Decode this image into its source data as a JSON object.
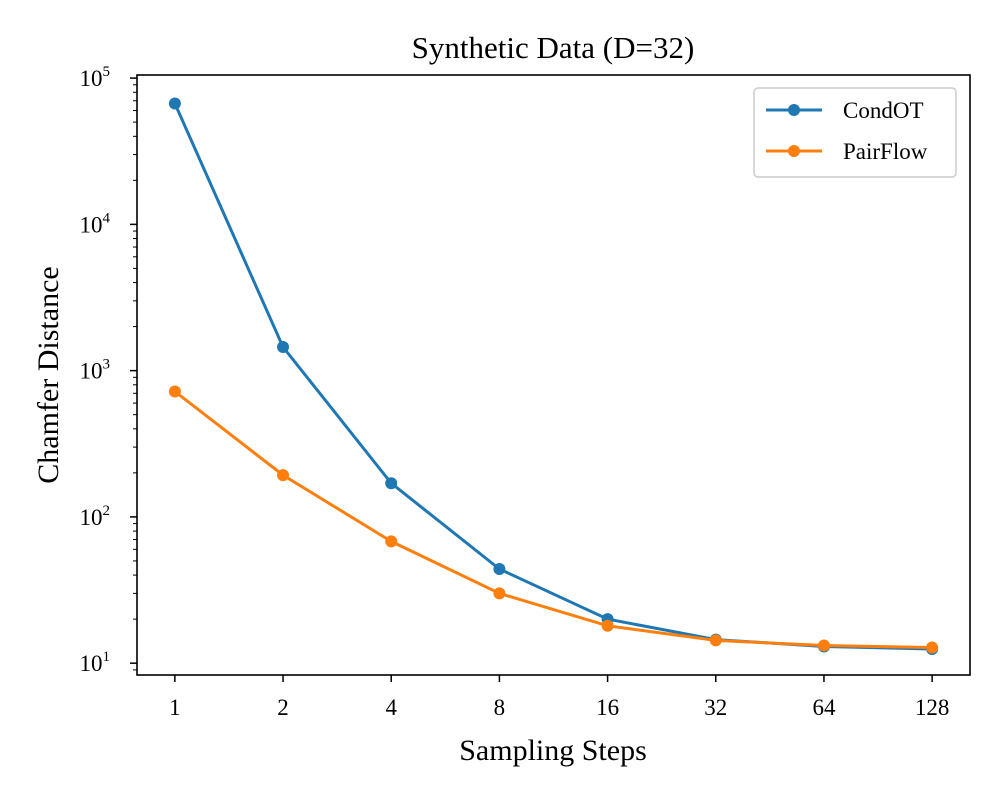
{
  "chart_data": {
    "type": "line",
    "title": "Synthetic Data (D=32)",
    "xlabel": "Sampling Steps",
    "ylabel": "Chamfer Distance",
    "x_scale": "log2",
    "y_scale": "log10",
    "categories": [
      "1",
      "2",
      "4",
      "8",
      "16",
      "32",
      "64",
      "128"
    ],
    "x": [
      1,
      2,
      4,
      8,
      16,
      32,
      64,
      128
    ],
    "ylim": [
      8.3,
      105000
    ],
    "y_ticks": [
      {
        "value": 10,
        "base": "10",
        "exp": "1"
      },
      {
        "value": 100,
        "base": "10",
        "exp": "2"
      },
      {
        "value": 1000,
        "base": "10",
        "exp": "3"
      },
      {
        "value": 10000,
        "base": "10",
        "exp": "4"
      },
      {
        "value": 100000,
        "base": "10",
        "exp": "5"
      }
    ],
    "legend_position": "upper-right",
    "grid": false,
    "series": [
      {
        "name": "CondOT",
        "color": "#1f77b4",
        "values": [
          67000,
          1450,
          170,
          44,
          20,
          14.5,
          13,
          12.5
        ]
      },
      {
        "name": "PairFlow",
        "color": "#ff7f0e",
        "values": [
          720,
          193,
          68,
          30,
          18,
          14.3,
          13.2,
          12.8
        ]
      }
    ]
  }
}
